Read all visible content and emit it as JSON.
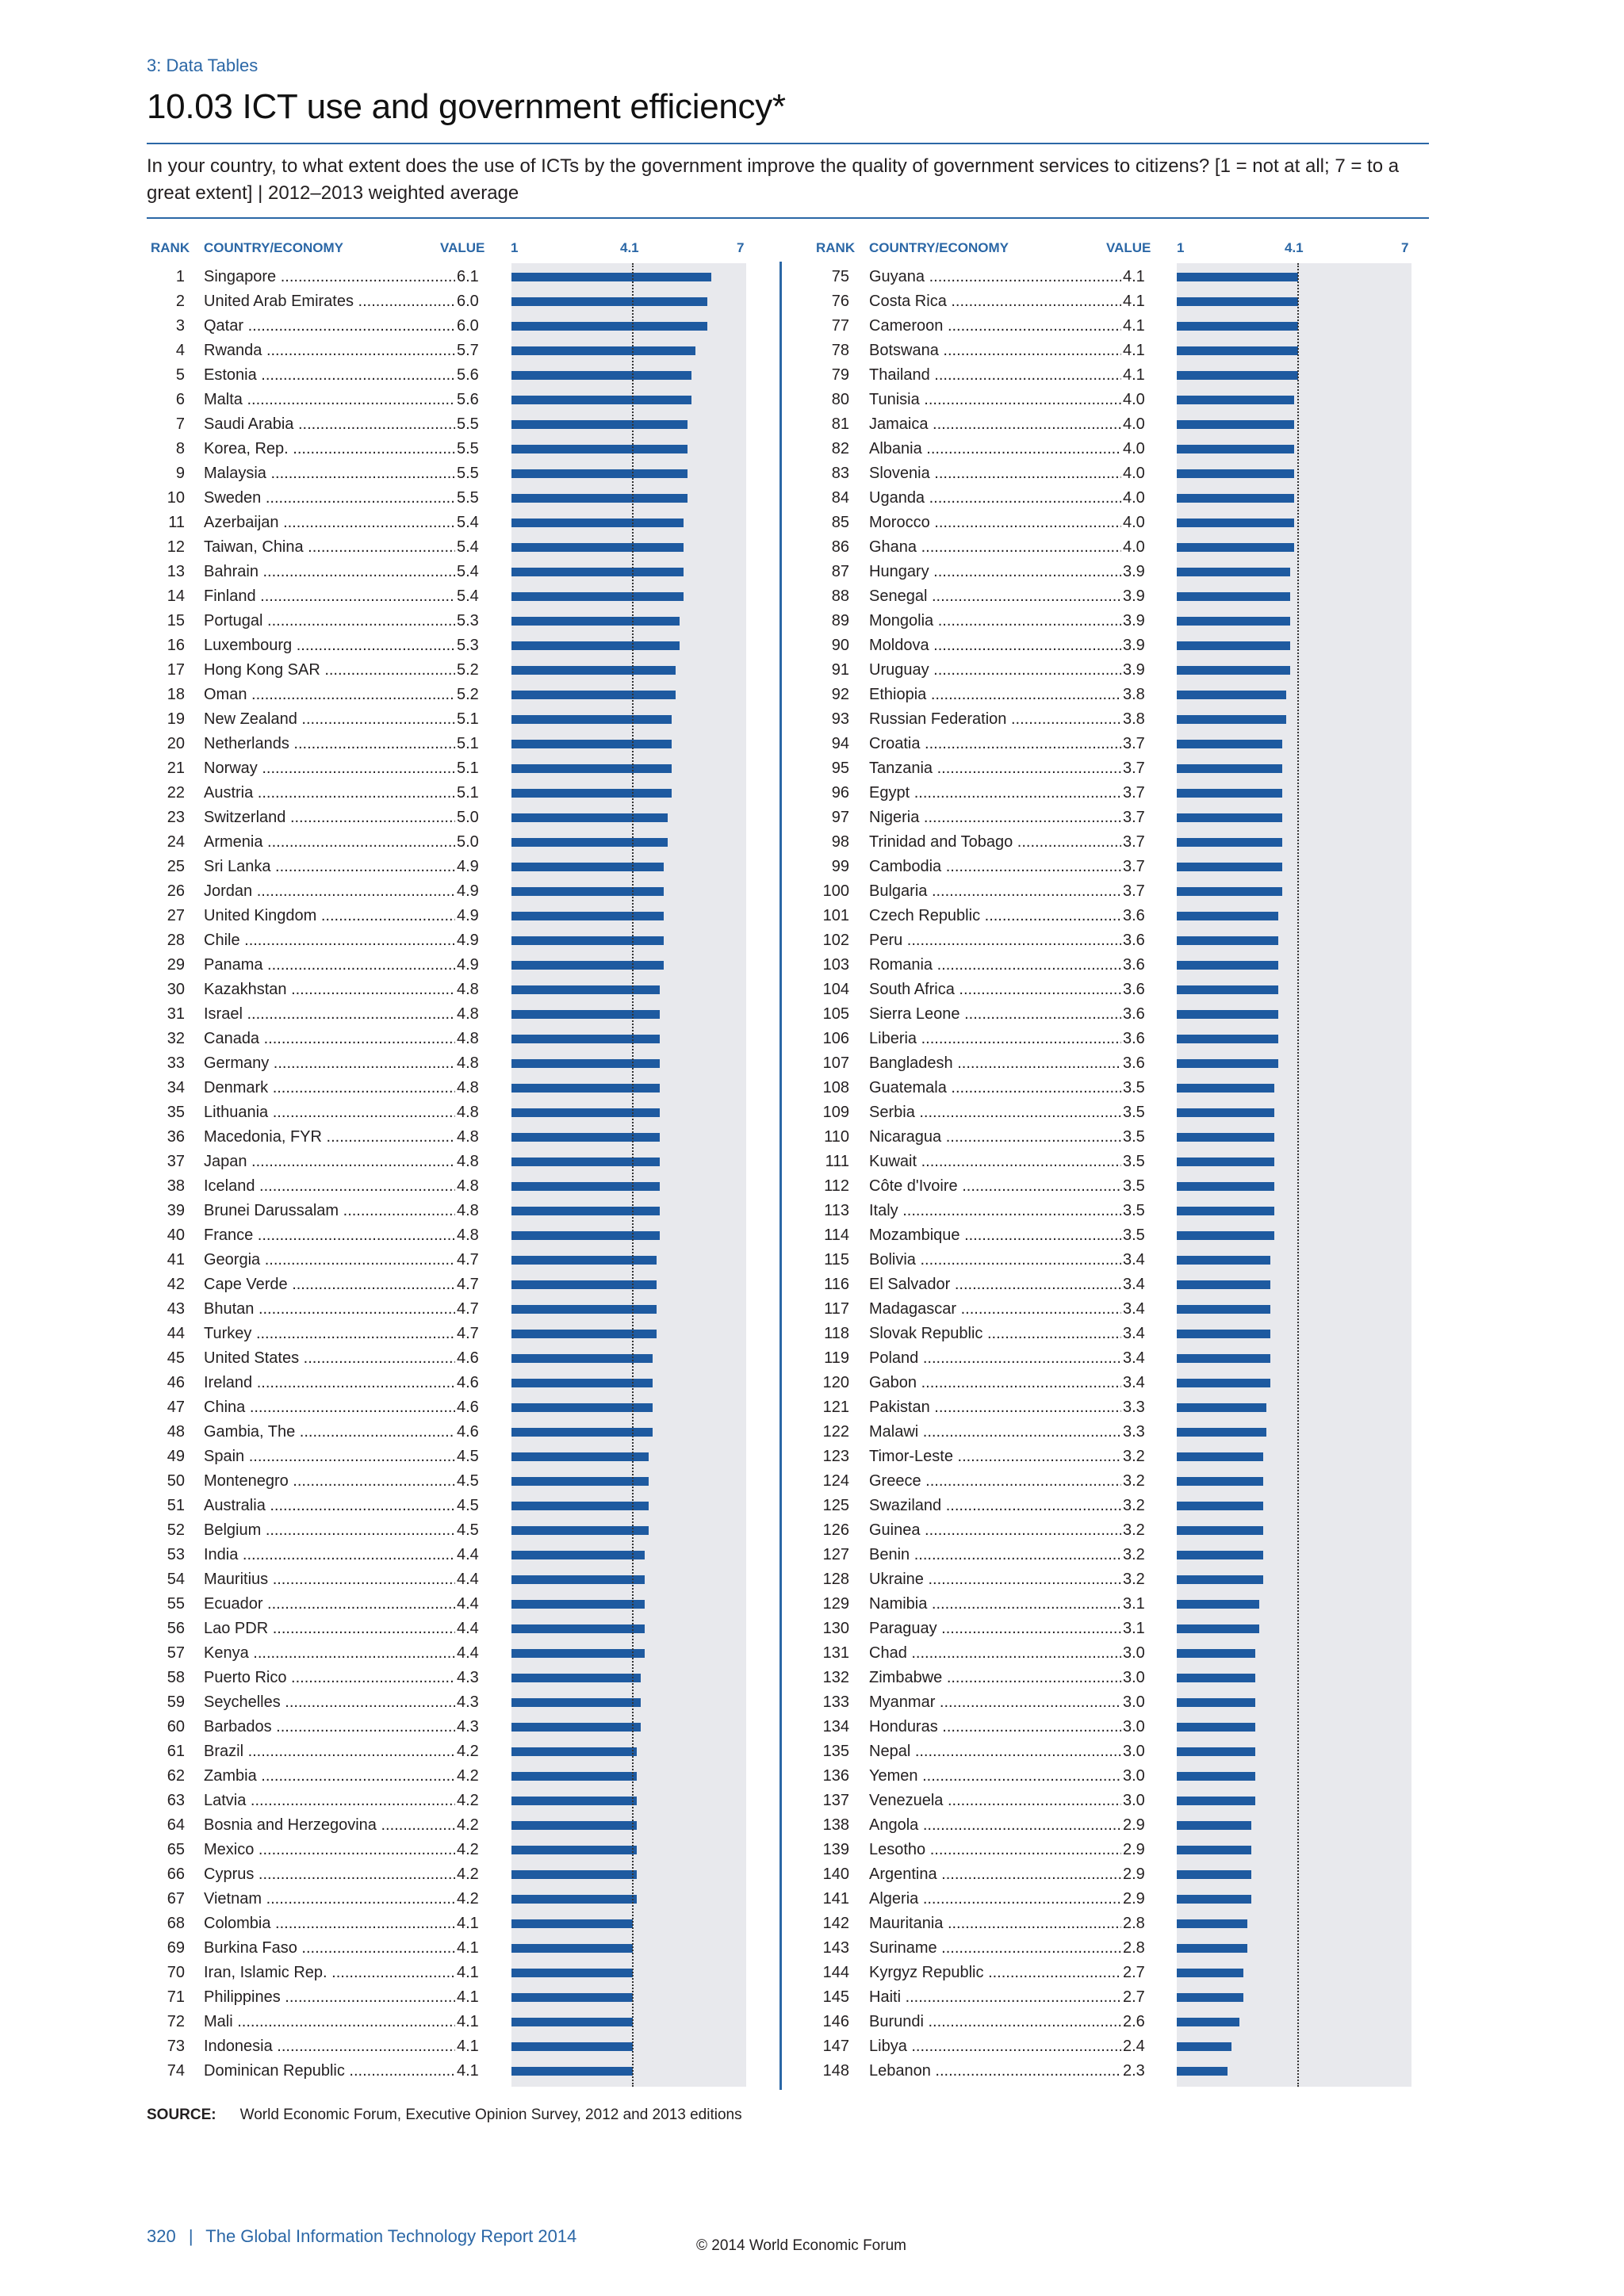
{
  "header": {
    "section": "3: Data Tables",
    "title": "10.03 ICT use and government efficiency*",
    "description": "In your country, to what extent does the use of ICTs by the government improve the quality of government services to citizens? [1 = not at all; 7 = to a great extent]  |  2012–2013 weighted average"
  },
  "columns": {
    "rank": "RANK",
    "country": "COUNTRY/ECONOMY",
    "value": "VALUE",
    "scale_min": "1",
    "scale_mid": "4.1",
    "scale_max": "7"
  },
  "chart_data": {
    "type": "bar",
    "orientation": "horizontal",
    "xlim": [
      1,
      7
    ],
    "reference_line": 4.1,
    "rows": [
      {
        "rank": "1",
        "country": "Singapore",
        "value": "6.1"
      },
      {
        "rank": "2",
        "country": "United Arab Emirates",
        "value": "6.0"
      },
      {
        "rank": "3",
        "country": "Qatar",
        "value": "6.0"
      },
      {
        "rank": "4",
        "country": "Rwanda",
        "value": "5.7"
      },
      {
        "rank": "5",
        "country": "Estonia",
        "value": "5.6"
      },
      {
        "rank": "6",
        "country": "Malta",
        "value": "5.6"
      },
      {
        "rank": "7",
        "country": "Saudi Arabia",
        "value": "5.5"
      },
      {
        "rank": "8",
        "country": "Korea, Rep.",
        "value": "5.5"
      },
      {
        "rank": "9",
        "country": "Malaysia",
        "value": "5.5"
      },
      {
        "rank": "10",
        "country": "Sweden",
        "value": "5.5"
      },
      {
        "rank": "11",
        "country": "Azerbaijan",
        "value": "5.4"
      },
      {
        "rank": "12",
        "country": "Taiwan, China",
        "value": "5.4"
      },
      {
        "rank": "13",
        "country": "Bahrain",
        "value": "5.4"
      },
      {
        "rank": "14",
        "country": "Finland",
        "value": "5.4"
      },
      {
        "rank": "15",
        "country": "Portugal",
        "value": "5.3"
      },
      {
        "rank": "16",
        "country": "Luxembourg",
        "value": "5.3"
      },
      {
        "rank": "17",
        "country": "Hong Kong SAR",
        "value": "5.2"
      },
      {
        "rank": "18",
        "country": "Oman",
        "value": "5.2"
      },
      {
        "rank": "19",
        "country": "New Zealand",
        "value": "5.1"
      },
      {
        "rank": "20",
        "country": "Netherlands",
        "value": "5.1"
      },
      {
        "rank": "21",
        "country": "Norway",
        "value": "5.1"
      },
      {
        "rank": "22",
        "country": "Austria",
        "value": "5.1"
      },
      {
        "rank": "23",
        "country": "Switzerland",
        "value": "5.0"
      },
      {
        "rank": "24",
        "country": "Armenia",
        "value": "5.0"
      },
      {
        "rank": "25",
        "country": "Sri Lanka",
        "value": "4.9"
      },
      {
        "rank": "26",
        "country": "Jordan",
        "value": "4.9"
      },
      {
        "rank": "27",
        "country": "United Kingdom",
        "value": "4.9"
      },
      {
        "rank": "28",
        "country": "Chile",
        "value": "4.9"
      },
      {
        "rank": "29",
        "country": "Panama",
        "value": "4.9"
      },
      {
        "rank": "30",
        "country": "Kazakhstan",
        "value": "4.8"
      },
      {
        "rank": "31",
        "country": "Israel",
        "value": "4.8"
      },
      {
        "rank": "32",
        "country": "Canada",
        "value": "4.8"
      },
      {
        "rank": "33",
        "country": "Germany",
        "value": "4.8"
      },
      {
        "rank": "34",
        "country": "Denmark",
        "value": "4.8"
      },
      {
        "rank": "35",
        "country": "Lithuania",
        "value": "4.8"
      },
      {
        "rank": "36",
        "country": "Macedonia, FYR",
        "value": "4.8"
      },
      {
        "rank": "37",
        "country": "Japan",
        "value": "4.8"
      },
      {
        "rank": "38",
        "country": "Iceland",
        "value": "4.8"
      },
      {
        "rank": "39",
        "country": "Brunei Darussalam",
        "value": "4.8"
      },
      {
        "rank": "40",
        "country": "France",
        "value": "4.8"
      },
      {
        "rank": "41",
        "country": "Georgia",
        "value": "4.7"
      },
      {
        "rank": "42",
        "country": "Cape Verde",
        "value": "4.7"
      },
      {
        "rank": "43",
        "country": "Bhutan",
        "value": "4.7"
      },
      {
        "rank": "44",
        "country": "Turkey",
        "value": "4.7"
      },
      {
        "rank": "45",
        "country": "United States",
        "value": "4.6"
      },
      {
        "rank": "46",
        "country": "Ireland",
        "value": "4.6"
      },
      {
        "rank": "47",
        "country": "China",
        "value": "4.6"
      },
      {
        "rank": "48",
        "country": "Gambia, The",
        "value": "4.6"
      },
      {
        "rank": "49",
        "country": "Spain",
        "value": "4.5"
      },
      {
        "rank": "50",
        "country": "Montenegro",
        "value": "4.5"
      },
      {
        "rank": "51",
        "country": "Australia",
        "value": "4.5"
      },
      {
        "rank": "52",
        "country": "Belgium",
        "value": "4.5"
      },
      {
        "rank": "53",
        "country": "India",
        "value": "4.4"
      },
      {
        "rank": "54",
        "country": "Mauritius",
        "value": "4.4"
      },
      {
        "rank": "55",
        "country": "Ecuador",
        "value": "4.4"
      },
      {
        "rank": "56",
        "country": "Lao PDR",
        "value": "4.4"
      },
      {
        "rank": "57",
        "country": "Kenya",
        "value": "4.4"
      },
      {
        "rank": "58",
        "country": "Puerto Rico",
        "value": "4.3"
      },
      {
        "rank": "59",
        "country": "Seychelles",
        "value": "4.3"
      },
      {
        "rank": "60",
        "country": "Barbados",
        "value": "4.3"
      },
      {
        "rank": "61",
        "country": "Brazil",
        "value": "4.2"
      },
      {
        "rank": "62",
        "country": "Zambia",
        "value": "4.2"
      },
      {
        "rank": "63",
        "country": "Latvia",
        "value": "4.2"
      },
      {
        "rank": "64",
        "country": "Bosnia and Herzegovina",
        "value": "4.2"
      },
      {
        "rank": "65",
        "country": "Mexico",
        "value": "4.2"
      },
      {
        "rank": "66",
        "country": "Cyprus",
        "value": "4.2"
      },
      {
        "rank": "67",
        "country": "Vietnam",
        "value": "4.2"
      },
      {
        "rank": "68",
        "country": "Colombia",
        "value": "4.1"
      },
      {
        "rank": "69",
        "country": "Burkina Faso",
        "value": "4.1"
      },
      {
        "rank": "70",
        "country": "Iran, Islamic Rep.",
        "value": "4.1"
      },
      {
        "rank": "71",
        "country": "Philippines",
        "value": "4.1"
      },
      {
        "rank": "72",
        "country": "Mali",
        "value": "4.1"
      },
      {
        "rank": "73",
        "country": "Indonesia",
        "value": "4.1"
      },
      {
        "rank": "74",
        "country": "Dominican Republic",
        "value": "4.1"
      },
      {
        "rank": "75",
        "country": "Guyana",
        "value": "4.1"
      },
      {
        "rank": "76",
        "country": "Costa Rica",
        "value": "4.1"
      },
      {
        "rank": "77",
        "country": "Cameroon",
        "value": "4.1"
      },
      {
        "rank": "78",
        "country": "Botswana",
        "value": "4.1"
      },
      {
        "rank": "79",
        "country": "Thailand",
        "value": "4.1"
      },
      {
        "rank": "80",
        "country": "Tunisia",
        "value": "4.0"
      },
      {
        "rank": "81",
        "country": "Jamaica",
        "value": "4.0"
      },
      {
        "rank": "82",
        "country": "Albania",
        "value": "4.0"
      },
      {
        "rank": "83",
        "country": "Slovenia",
        "value": "4.0"
      },
      {
        "rank": "84",
        "country": "Uganda",
        "value": "4.0"
      },
      {
        "rank": "85",
        "country": "Morocco",
        "value": "4.0"
      },
      {
        "rank": "86",
        "country": "Ghana",
        "value": "4.0"
      },
      {
        "rank": "87",
        "country": "Hungary",
        "value": "3.9"
      },
      {
        "rank": "88",
        "country": "Senegal",
        "value": "3.9"
      },
      {
        "rank": "89",
        "country": "Mongolia",
        "value": "3.9"
      },
      {
        "rank": "90",
        "country": "Moldova",
        "value": "3.9"
      },
      {
        "rank": "91",
        "country": "Uruguay",
        "value": "3.9"
      },
      {
        "rank": "92",
        "country": "Ethiopia",
        "value": "3.8"
      },
      {
        "rank": "93",
        "country": "Russian Federation",
        "value": "3.8"
      },
      {
        "rank": "94",
        "country": "Croatia",
        "value": "3.7"
      },
      {
        "rank": "95",
        "country": "Tanzania",
        "value": "3.7"
      },
      {
        "rank": "96",
        "country": "Egypt",
        "value": "3.7"
      },
      {
        "rank": "97",
        "country": "Nigeria",
        "value": "3.7"
      },
      {
        "rank": "98",
        "country": "Trinidad and Tobago",
        "value": "3.7"
      },
      {
        "rank": "99",
        "country": "Cambodia",
        "value": "3.7"
      },
      {
        "rank": "100",
        "country": "Bulgaria",
        "value": "3.7"
      },
      {
        "rank": "101",
        "country": "Czech Republic",
        "value": "3.6"
      },
      {
        "rank": "102",
        "country": "Peru",
        "value": "3.6"
      },
      {
        "rank": "103",
        "country": "Romania",
        "value": "3.6"
      },
      {
        "rank": "104",
        "country": "South Africa",
        "value": "3.6"
      },
      {
        "rank": "105",
        "country": "Sierra Leone",
        "value": "3.6"
      },
      {
        "rank": "106",
        "country": "Liberia",
        "value": "3.6"
      },
      {
        "rank": "107",
        "country": "Bangladesh",
        "value": "3.6"
      },
      {
        "rank": "108",
        "country": "Guatemala",
        "value": "3.5"
      },
      {
        "rank": "109",
        "country": "Serbia",
        "value": "3.5"
      },
      {
        "rank": "110",
        "country": "Nicaragua",
        "value": "3.5"
      },
      {
        "rank": "111",
        "country": "Kuwait",
        "value": "3.5"
      },
      {
        "rank": "112",
        "country": "Côte d'Ivoire",
        "value": "3.5"
      },
      {
        "rank": "113",
        "country": "Italy",
        "value": "3.5"
      },
      {
        "rank": "114",
        "country": "Mozambique",
        "value": "3.5"
      },
      {
        "rank": "115",
        "country": "Bolivia",
        "value": "3.4"
      },
      {
        "rank": "116",
        "country": "El Salvador",
        "value": "3.4"
      },
      {
        "rank": "117",
        "country": "Madagascar",
        "value": "3.4"
      },
      {
        "rank": "118",
        "country": "Slovak Republic",
        "value": "3.4"
      },
      {
        "rank": "119",
        "country": "Poland",
        "value": "3.4"
      },
      {
        "rank": "120",
        "country": "Gabon",
        "value": "3.4"
      },
      {
        "rank": "121",
        "country": "Pakistan",
        "value": "3.3"
      },
      {
        "rank": "122",
        "country": "Malawi",
        "value": "3.3"
      },
      {
        "rank": "123",
        "country": "Timor-Leste",
        "value": "3.2"
      },
      {
        "rank": "124",
        "country": "Greece",
        "value": "3.2"
      },
      {
        "rank": "125",
        "country": "Swaziland",
        "value": "3.2"
      },
      {
        "rank": "126",
        "country": "Guinea",
        "value": "3.2"
      },
      {
        "rank": "127",
        "country": "Benin",
        "value": "3.2"
      },
      {
        "rank": "128",
        "country": "Ukraine",
        "value": "3.2"
      },
      {
        "rank": "129",
        "country": "Namibia",
        "value": "3.1"
      },
      {
        "rank": "130",
        "country": "Paraguay",
        "value": "3.1"
      },
      {
        "rank": "131",
        "country": "Chad",
        "value": "3.0"
      },
      {
        "rank": "132",
        "country": "Zimbabwe",
        "value": "3.0"
      },
      {
        "rank": "133",
        "country": "Myanmar",
        "value": "3.0"
      },
      {
        "rank": "134",
        "country": "Honduras",
        "value": "3.0"
      },
      {
        "rank": "135",
        "country": "Nepal",
        "value": "3.0"
      },
      {
        "rank": "136",
        "country": "Yemen",
        "value": "3.0"
      },
      {
        "rank": "137",
        "country": "Venezuela",
        "value": "3.0"
      },
      {
        "rank": "138",
        "country": "Angola",
        "value": "2.9"
      },
      {
        "rank": "139",
        "country": "Lesotho",
        "value": "2.9"
      },
      {
        "rank": "140",
        "country": "Argentina",
        "value": "2.9"
      },
      {
        "rank": "141",
        "country": "Algeria",
        "value": "2.9"
      },
      {
        "rank": "142",
        "country": "Mauritania",
        "value": "2.8"
      },
      {
        "rank": "143",
        "country": "Suriname",
        "value": "2.8"
      },
      {
        "rank": "144",
        "country": "Kyrgyz Republic",
        "value": "2.7"
      },
      {
        "rank": "145",
        "country": "Haiti",
        "value": "2.7"
      },
      {
        "rank": "146",
        "country": "Burundi",
        "value": "2.6"
      },
      {
        "rank": "147",
        "country": "Libya",
        "value": "2.4"
      },
      {
        "rank": "148",
        "country": "Lebanon",
        "value": "2.3"
      }
    ]
  },
  "source": {
    "label": "SOURCE:",
    "text": "World Economic Forum, Executive Opinion Survey, 2012 and 2013 editions"
  },
  "footer": {
    "page_number": "320",
    "separator": "|",
    "report": "The Global Information Technology Report 2014",
    "copyright": "© 2014 World Economic Forum"
  }
}
